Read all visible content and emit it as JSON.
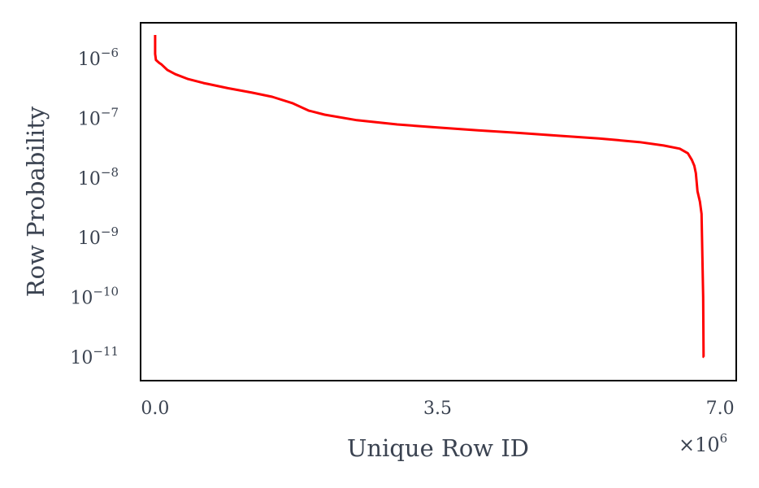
{
  "chart_data": {
    "type": "line",
    "xlabel": "Unique Row ID",
    "ylabel": "Row Probability",
    "x_offset_label": "×10",
    "x_offset_exponent": "6",
    "xlim": [
      -0.18,
      7.2
    ],
    "ylim": [
      4e-12,
      4e-06
    ],
    "x_tick_values": [
      0.0,
      3.5,
      7.0
    ],
    "x_tick_labels": [
      "0.0",
      "3.5",
      "7.0"
    ],
    "y_scale": "log",
    "y_tick_values": [
      1e-06,
      1e-07,
      1e-08,
      1e-09,
      1e-10,
      1e-11
    ],
    "y_tick_bases": [
      "10",
      "10",
      "10",
      "10",
      "10",
      "10"
    ],
    "y_tick_exponents": [
      "−6",
      "−7",
      "−8",
      "−9",
      "−10",
      "−11"
    ],
    "grid": false,
    "series": [
      {
        "color": "#ff0000",
        "x": [
          0.0,
          0.0,
          0.01,
          0.05,
          0.08,
          0.15,
          0.25,
          0.4,
          0.6,
          0.9,
          1.2,
          1.45,
          1.7,
          1.9,
          2.1,
          2.5,
          3.0,
          3.5,
          4.0,
          4.5,
          5.0,
          5.5,
          6.0,
          6.3,
          6.5,
          6.6,
          6.65,
          6.68,
          6.7,
          6.72,
          6.75,
          6.77,
          6.78,
          6.79,
          6.795,
          6.8,
          6.8
        ],
        "y": [
          2.5e-06,
          1.2e-06,
          9.5e-07,
          8.5e-07,
          8e-07,
          6.5e-07,
          5.5e-07,
          4.6e-07,
          3.9e-07,
          3.2e-07,
          2.7e-07,
          2.3e-07,
          1.8e-07,
          1.35e-07,
          1.15e-07,
          9.3e-08,
          7.9e-08,
          7e-08,
          6.3e-08,
          5.7e-08,
          5.1e-08,
          4.6e-08,
          4e-08,
          3.5e-08,
          3.1e-08,
          2.6e-08,
          2e-08,
          1.6e-08,
          1.2e-08,
          6e-09,
          4e-09,
          2.5e-09,
          5e-10,
          1e-10,
          1e-11,
          1e-11,
          1e-11
        ]
      }
    ]
  }
}
